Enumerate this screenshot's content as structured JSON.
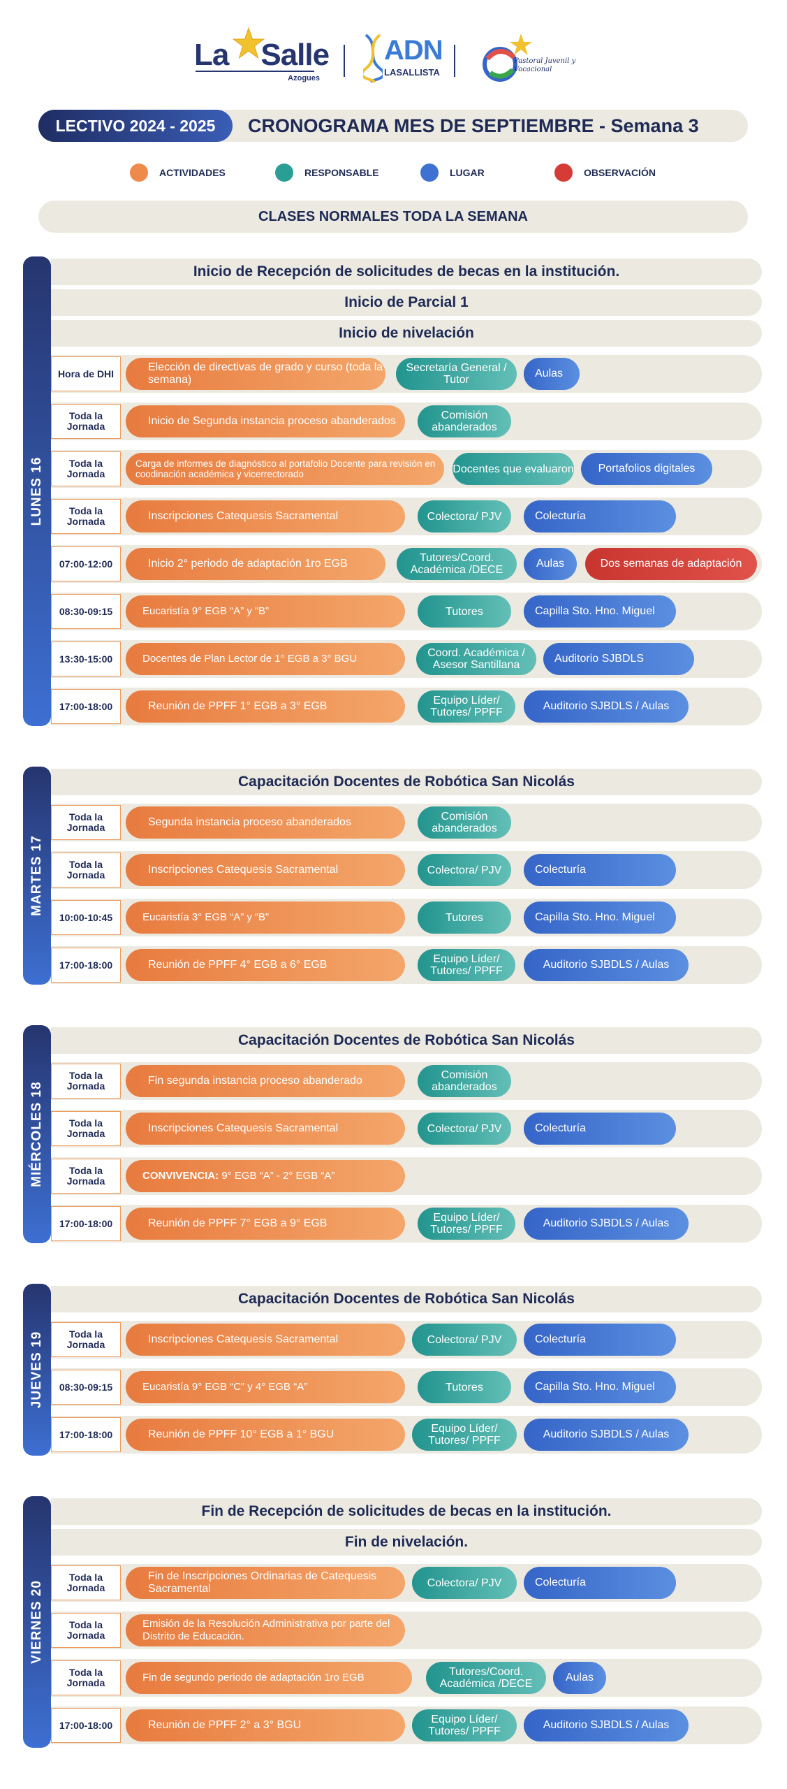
{
  "header": {
    "lasalle_brand": "La Salle",
    "lasalle_sub": "Azogues",
    "adn_brand": "ADN",
    "adn_sub": "LASALLISTA",
    "pastoral_text": "Pastoral Juvenil y Vocacional"
  },
  "title": {
    "lectivo": "LECTIVO 2024 - 2025",
    "cronograma": "CRONOGRAMA MES DE SEPTIEMBRE - Semana 3"
  },
  "legend": {
    "activities": "ACTIVIDADES",
    "responsible": "RESPONSABLE",
    "place": "LUGAR",
    "observation": "OBSERVACIÓN",
    "colors": {
      "activities": "#ef8a4c",
      "responsible": "#2a9d94",
      "place": "#3f72d0",
      "observation": "#d63b35"
    }
  },
  "notice": "CLASES NORMALES TODA LA SEMANA",
  "days": {
    "lunes": {
      "label": "LUNES 16",
      "headers": [
        "Inicio de Recepción de solicitudes de becas en la institución.",
        "Inicio de Parcial 1",
        "Inicio de nivelación"
      ],
      "rows": [
        {
          "time": "Hora de DHI",
          "activity": "Elección de directivas de grado y curso (toda la semana)",
          "responsible": "Secretaría General / Tutor",
          "place": "Aulas"
        },
        {
          "time": "Toda la Jornada",
          "activity": "Inicio de Segunda instancia proceso abanderados",
          "responsible": "Comisión abanderados"
        },
        {
          "time": "Toda la Jornada",
          "activity": "Carga de informes de diagnóstico al portafolio Docente para revisión en coodinación académica y vicerrectorado",
          "responsible": "Docentes que evaluaron",
          "place": "Portafolios digitales"
        },
        {
          "time": "Toda la Jornada",
          "activity": "Inscripciones Catequesis Sacramental",
          "responsible": "Colectora/ PJV",
          "place": "Colectu­ría"
        },
        {
          "time": "07:00-12:00",
          "activity": "Inicio 2° periodo de adaptación 1ro EGB",
          "responsible": "Tutores/Coord. Académica /DECE",
          "place": "Aulas",
          "observation": "Dos semanas de adaptación"
        },
        {
          "time": "08:30-09:15",
          "activity": "Eucaristía 9° EGB “A” y “B”",
          "responsible": "Tutores",
          "place": "Capilla Sto. Hno. Miguel"
        },
        {
          "time": "13:30-15:00",
          "activity": "Docentes de Plan Lector de 1° EGB a 3° BGU",
          "responsible": "Coord. Académica / Asesor Santillana",
          "place": "Auditorio SJBDLS"
        },
        {
          "time": "17:00-18:00",
          "activity": "Reunión de PPFF 1° EGB a 3° EGB",
          "responsible": "Equipo Líder/ Tutores/ PPFF",
          "place": "Auditorio SJBDLS / Aulas"
        }
      ]
    },
    "martes": {
      "label": "MARTES 17",
      "headers": [
        "Capacitación Docentes de Robótica San Nicolás"
      ],
      "rows": [
        {
          "time": "Toda la Jornada",
          "activity": "Segunda instancia proceso abanderados",
          "responsible": "Comisión abanderados"
        },
        {
          "time": "Toda la Jornada",
          "activity": "Inscripciones Catequesis Sacramental",
          "responsible": "Colectora/ PJV",
          "place": "Colecturía"
        },
        {
          "time": "10:00-10:45",
          "activity": "Eucaristía 3° EGB “A” y “B”",
          "responsible": "Tutores",
          "place": "Capilla Sto. Hno. Miguel"
        },
        {
          "time": "17:00-18:00",
          "activity": "Reunión de PPFF 4° EGB a 6° EGB",
          "responsible": "Equipo Líder/ Tutores/ PPFF",
          "place": "Auditorio SJBDLS / Aulas"
        }
      ]
    },
    "miercoles": {
      "label": "MIÉRCOLES 18",
      "headers": [
        "Capacitación Docentes de Robótica San Nicolás"
      ],
      "rows": [
        {
          "time": "Toda la Jornada",
          "activity": "Fin segunda instancia proceso abanderado",
          "responsible": "Comisión abanderados"
        },
        {
          "time": "Toda la Jornada",
          "activity": "Inscripciones Catequesis Sacramental",
          "responsible": "Colectora/ PJV",
          "place": "Colecturía"
        },
        {
          "time": "Toda la Jornada",
          "activity_bold": "CONVIVENCIA:",
          "activity": " 9° EGB “A” - 2° EGB “A”"
        },
        {
          "time": "17:00-18:00",
          "activity": "Reunión de PPFF 7° EGB a 9° EGB",
          "responsible": "Equipo Líder/ Tutores/ PPFF",
          "place": "Auditorio SJBDLS / Aulas"
        }
      ]
    },
    "jueves": {
      "label": "JUEVES 19",
      "headers": [
        "Capacitación Docentes de Robótica San Nicolás"
      ],
      "rows": [
        {
          "time": "Toda la Jornada",
          "activity": "Inscripciones Catequesis Sacramental",
          "responsible": "Colectora/ PJV",
          "place": "Colecturía"
        },
        {
          "time": "08:30-09:15",
          "activity": "Eucaristía 9° EGB “C” y 4° EGB “A”",
          "responsible": "Tutores",
          "place": "Capilla Sto. Hno. Miguel"
        },
        {
          "time": "17:00-18:00",
          "activity": "Reunión de PPFF 10° EGB a 1° BGU",
          "responsible": "Equipo Líder/ Tutores/ PPFF",
          "place": "Auditorio SJBDLS / Aulas"
        }
      ]
    },
    "viernes": {
      "label": "VIERNES 20",
      "headers": [
        "Fin de Recepción de solicitudes de becas en la institución.",
        "Fin de nivelación."
      ],
      "rows": [
        {
          "time": "Toda la Jornada",
          "activity": "Fin de Inscripciones Ordinarias de Catequesis Sacramental",
          "responsible": "Colectora/ PJV",
          "place": "Colecturía"
        },
        {
          "time": "Toda la Jornada",
          "activity": "Emisión de la Resolución Administrativa por parte del Distrito de Educación."
        },
        {
          "time": "Toda la Jornada",
          "activity": "Fin de segundo periodo de adaptación 1ro EGB",
          "responsible": "Tutores/Coord. Académica /DECE",
          "place": "Aulas"
        },
        {
          "time": "17:00-18:00",
          "activity": "Reunión de PPFF 2° a 3° BGU",
          "responsible": "Equipo Líder/ Tutores/ PPFF",
          "place": "Auditorio SJBDLS / Aulas"
        }
      ]
    }
  }
}
